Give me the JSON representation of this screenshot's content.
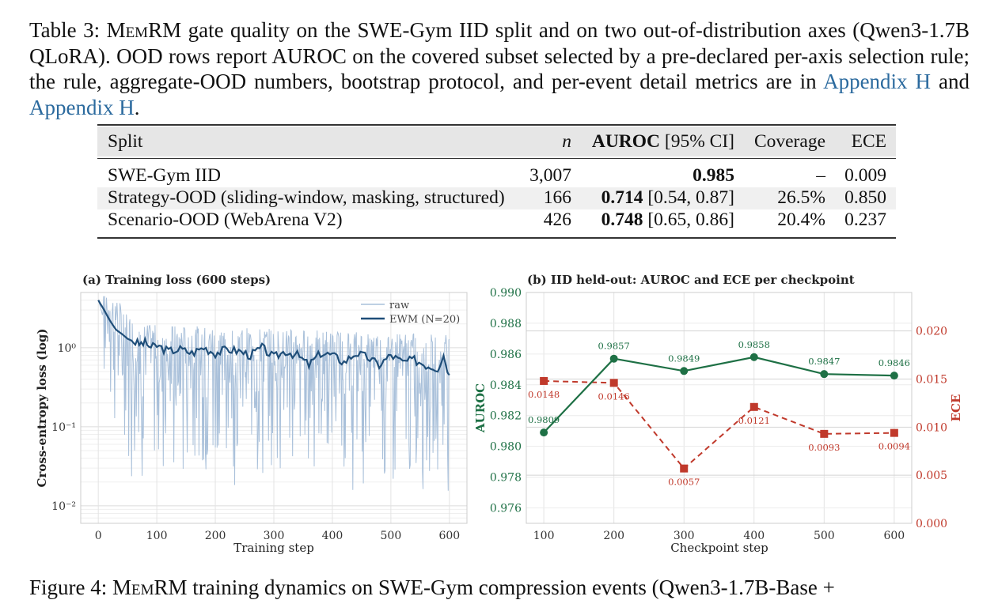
{
  "caption": {
    "prefix": "Table 3: ",
    "model_name": "MemRM",
    "body": " gate quality on the SWE-Gym IID split and on two out-of-distribution axes (Qwen3-1.7B QLoRA). OOD rows report AUROC on the covered subset selected by a pre-declared per-axis selection rule; the rule, aggregate-OOD numbers, bootstrap protocol, and per-event detail metrics are in ",
    "link1": "Appendix H",
    "mid": " and ",
    "link2": "Appendix H",
    "end": "."
  },
  "table": {
    "headers": [
      "Split",
      "n",
      "AUROC",
      "[95% CI]",
      "Coverage",
      "ECE"
    ],
    "rows": [
      {
        "split": "SWE-Gym IID",
        "n": "3,007",
        "auroc": "0.985",
        "ci": "",
        "coverage": "–",
        "ece": "0.009"
      },
      {
        "split": "Strategy-OOD (sliding-window, masking, structured)",
        "n": "166",
        "auroc": "0.714",
        "ci": "[0.54, 0.87]",
        "coverage": "26.5%",
        "ece": "0.850"
      },
      {
        "split": "Scenario-OOD (WebArena V2)",
        "n": "426",
        "auroc": "0.748",
        "ci": "[0.65, 0.86]",
        "coverage": "20.4%",
        "ece": "0.237"
      }
    ]
  },
  "figure_caption": {
    "prefix": "Figure 4: ",
    "model_name": "MemRM",
    "body": " training dynamics on SWE-Gym compression events (Qwen3-1.7B-Base +"
  },
  "colors": {
    "raw": "#a9c0da",
    "ewm": "#1f4e79",
    "auroc": "#1e7045",
    "ece": "#c0392b",
    "link": "#2b6a9e"
  },
  "chart_data": [
    {
      "type": "line",
      "title": "(a) Training loss (600 steps)",
      "xlabel": "Training step",
      "ylabel": "Cross-entropy loss (log)",
      "y_scale": "log",
      "ylim": [
        0.006,
        5
      ],
      "xlim": [
        -30,
        630
      ],
      "x_ticks": [
        0,
        100,
        200,
        300,
        400,
        500,
        600
      ],
      "y_tick_labels": [
        "10⁰",
        "10⁻¹",
        "10⁻²"
      ],
      "y_tick_values": [
        1,
        0.1,
        0.01
      ],
      "legend": {
        "position": "top-right",
        "entries": [
          "raw",
          "EWM (N=20)"
        ]
      },
      "grid": true,
      "series": [
        {
          "name": "raw",
          "x": [
            0,
            20,
            40,
            60,
            80,
            100,
            120,
            140,
            160,
            180,
            200,
            220,
            240,
            260,
            280,
            300,
            320,
            340,
            360,
            380,
            400,
            420,
            440,
            460,
            480,
            500,
            520,
            540,
            560,
            580,
            600
          ],
          "y": [
            4.0,
            1.8,
            0.9,
            0.8,
            0.5,
            0.4,
            0.6,
            0.2,
            1.0,
            0.1,
            1.2,
            0.15,
            0.8,
            0.05,
            1.1,
            0.1,
            0.03,
            0.9,
            0.2,
            1.3,
            0.04,
            0.8,
            0.1,
            1.0,
            0.01,
            0.5,
            1.2,
            0.05,
            0.3,
            0.1,
            0.6
          ],
          "note_range": "values fluctuate heavily between ~0.01 and ~2"
        },
        {
          "name": "EWM (N=20)",
          "x": [
            0,
            10,
            20,
            30,
            40,
            50,
            60,
            70,
            80,
            90,
            100,
            120,
            140,
            160,
            180,
            200,
            220,
            240,
            260,
            280,
            300,
            320,
            340,
            360,
            380,
            400,
            420,
            440,
            460,
            480,
            500,
            520,
            540,
            560,
            580,
            590,
            600
          ],
          "y": [
            4.0,
            3.0,
            2.2,
            1.7,
            1.5,
            1.3,
            1.2,
            1.1,
            1.15,
            1.0,
            1.05,
            0.9,
            0.95,
            0.85,
            1.0,
            0.85,
            0.95,
            0.9,
            0.8,
            1.0,
            0.75,
            0.9,
            0.8,
            0.6,
            0.85,
            0.8,
            0.65,
            0.85,
            0.75,
            0.6,
            0.8,
            0.65,
            0.7,
            0.6,
            0.55,
            0.8,
            0.45
          ]
        }
      ]
    },
    {
      "type": "line",
      "title": "(b) IID held-out: AUROC and ECE per checkpoint",
      "xlabel": "Checkpoint step",
      "ylabel": "AUROC",
      "y2label": "ECE",
      "x": [
        100,
        200,
        300,
        400,
        500,
        600
      ],
      "xlim": [
        75,
        625
      ],
      "ylim": [
        0.975,
        0.99
      ],
      "y2lim": [
        0.0,
        0.024
      ],
      "y_ticks": [
        0.976,
        0.978,
        0.98,
        0.982,
        0.984,
        0.986,
        0.988,
        0.99
      ],
      "y2_ticks": [
        0.0,
        0.005,
        0.01,
        0.015,
        0.02
      ],
      "grid": true,
      "series": [
        {
          "name": "AUROC",
          "axis": "left",
          "values": [
            0.9809,
            0.9857,
            0.9849,
            0.9858,
            0.9847,
            0.9846
          ],
          "labels": [
            "0.9809",
            "0.9857",
            "0.9849",
            "0.9858",
            "0.9847",
            "0.9846"
          ]
        },
        {
          "name": "ECE",
          "axis": "right",
          "values": [
            0.0148,
            0.0146,
            0.0057,
            0.0121,
            0.0093,
            0.0094
          ],
          "labels": [
            "0.0148",
            "0.0146",
            "0.0057",
            "0.0121",
            "0.0093",
            "0.0094"
          ]
        }
      ]
    }
  ]
}
